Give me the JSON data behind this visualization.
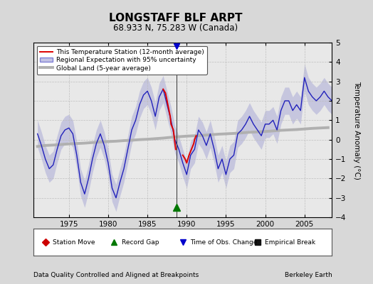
{
  "title": "LONGSTAFF BLF ARPT",
  "subtitle": "68.933 N, 75.283 W (Canada)",
  "ylabel": "Temperature Anomaly (°C)",
  "xlabel_left": "Data Quality Controlled and Aligned at Breakpoints",
  "xlabel_right": "Berkeley Earth",
  "xlim": [
    1970.5,
    2008.5
  ],
  "ylim": [
    -4,
    5
  ],
  "yticks": [
    -4,
    -3,
    -2,
    -1,
    0,
    1,
    2,
    3,
    4,
    5
  ],
  "xticks": [
    1975,
    1980,
    1985,
    1990,
    1995,
    2000,
    2005
  ],
  "background_color": "#d8d8d8",
  "plot_bg_color": "#e8e8e8",
  "legend_items": [
    {
      "label": "This Temperature Station (12-month average)",
      "color": "#cc0000",
      "lw": 1.5
    },
    {
      "label": "Regional Expectation with 95% uncertainty",
      "color": "#3333cc",
      "lw": 1.5
    },
    {
      "label": "Global Land (5-year average)",
      "color": "#aaaaaa",
      "lw": 2.5
    }
  ],
  "vertical_line_x": 1988.7,
  "record_gap_x": 1988.7,
  "record_gap_y_data": -3.5,
  "time_obs_y_data": 4.8,
  "regional_x": [
    1971.0,
    1971.5,
    1972.0,
    1972.5,
    1973.0,
    1973.5,
    1974.0,
    1974.5,
    1975.0,
    1975.5,
    1976.0,
    1976.5,
    1977.0,
    1977.5,
    1978.0,
    1978.5,
    1979.0,
    1979.5,
    1980.0,
    1980.5,
    1981.0,
    1981.5,
    1982.0,
    1982.5,
    1983.0,
    1983.5,
    1984.0,
    1984.5,
    1985.0,
    1985.5,
    1986.0,
    1986.5,
    1987.0,
    1987.5,
    1988.0,
    1988.5,
    1989.0,
    1989.5,
    1990.0,
    1990.5,
    1991.0,
    1991.5,
    1992.0,
    1992.5,
    1993.0,
    1993.5,
    1994.0,
    1994.5,
    1995.0,
    1995.5,
    1996.0,
    1996.5,
    1997.0,
    1997.5,
    1998.0,
    1998.5,
    1999.0,
    1999.5,
    2000.0,
    2000.5,
    2001.0,
    2001.5,
    2002.0,
    2002.5,
    2003.0,
    2003.5,
    2004.0,
    2004.5,
    2005.0,
    2005.5,
    2006.0,
    2006.5,
    2007.0,
    2007.5,
    2008.0,
    2008.5
  ],
  "regional_y": [
    0.3,
    -0.3,
    -1.0,
    -1.5,
    -1.3,
    -0.5,
    0.2,
    0.5,
    0.6,
    0.3,
    -0.8,
    -2.2,
    -2.8,
    -2.0,
    -1.0,
    -0.2,
    0.3,
    -0.3,
    -1.2,
    -2.5,
    -3.0,
    -2.2,
    -1.5,
    -0.5,
    0.5,
    1.0,
    1.8,
    2.3,
    2.5,
    2.0,
    1.2,
    2.2,
    2.6,
    1.8,
    1.0,
    0.0,
    -0.5,
    -1.2,
    -1.8,
    -0.8,
    -0.5,
    0.5,
    0.2,
    -0.3,
    0.3,
    -0.5,
    -1.5,
    -1.0,
    -1.8,
    -1.0,
    -0.8,
    0.3,
    0.5,
    0.8,
    1.2,
    0.8,
    0.5,
    0.2,
    0.8,
    0.8,
    1.0,
    0.5,
    1.5,
    2.0,
    2.0,
    1.5,
    1.8,
    1.5,
    3.2,
    2.5,
    2.2,
    2.0,
    2.2,
    2.5,
    2.2,
    2.0
  ],
  "regional_upper": [
    1.0,
    0.4,
    -0.3,
    -0.8,
    -0.6,
    0.2,
    0.9,
    1.2,
    1.3,
    1.0,
    -0.1,
    -1.5,
    -2.1,
    -1.3,
    -0.3,
    0.5,
    1.0,
    0.4,
    -0.5,
    -1.8,
    -2.3,
    -1.5,
    -0.8,
    0.2,
    1.2,
    1.7,
    2.5,
    3.0,
    3.2,
    2.7,
    1.9,
    2.9,
    3.3,
    2.5,
    1.7,
    0.7,
    0.2,
    -0.5,
    -1.1,
    -0.1,
    0.2,
    1.2,
    0.9,
    0.4,
    1.0,
    0.2,
    -0.8,
    -0.3,
    -1.1,
    -0.3,
    -0.1,
    1.0,
    1.2,
    1.5,
    1.9,
    1.5,
    1.2,
    0.9,
    1.5,
    1.5,
    1.7,
    1.2,
    2.2,
    2.7,
    2.7,
    2.2,
    2.5,
    2.2,
    3.9,
    3.2,
    2.9,
    2.7,
    2.9,
    3.2,
    2.9,
    2.7
  ],
  "regional_lower": [
    -0.4,
    -1.0,
    -1.7,
    -2.2,
    -2.0,
    -1.2,
    -0.5,
    -0.2,
    -0.1,
    -0.4,
    -1.5,
    -2.9,
    -3.5,
    -2.7,
    -1.7,
    -0.9,
    -0.4,
    -1.0,
    -1.9,
    -3.2,
    -3.7,
    -2.9,
    -2.2,
    -1.2,
    -0.2,
    0.3,
    1.1,
    1.6,
    1.8,
    1.3,
    0.5,
    1.5,
    1.9,
    1.1,
    0.3,
    -0.7,
    -1.2,
    -1.9,
    -2.5,
    -1.5,
    -1.2,
    -0.2,
    -0.5,
    -1.0,
    -0.4,
    -1.2,
    -2.2,
    -1.7,
    -2.5,
    -1.7,
    -1.5,
    -0.4,
    -0.2,
    0.1,
    0.5,
    0.1,
    -0.2,
    -0.5,
    0.1,
    0.1,
    0.3,
    -0.2,
    0.8,
    1.3,
    1.3,
    0.8,
    1.1,
    0.8,
    2.5,
    1.8,
    1.5,
    1.3,
    1.5,
    1.8,
    1.5,
    1.3
  ],
  "global_x": [
    1971.0,
    1972.0,
    1973.0,
    1974.0,
    1975.0,
    1976.0,
    1977.0,
    1978.0,
    1979.0,
    1980.0,
    1981.0,
    1982.0,
    1983.0,
    1984.0,
    1985.0,
    1986.0,
    1987.0,
    1988.0,
    1989.0,
    1990.0,
    1991.0,
    1992.0,
    1993.0,
    1994.0,
    1995.0,
    1996.0,
    1997.0,
    1998.0,
    1999.0,
    2000.0,
    2001.0,
    2002.0,
    2003.0,
    2004.0,
    2005.0,
    2006.0,
    2007.0,
    2008.0
  ],
  "global_y": [
    -0.35,
    -0.3,
    -0.28,
    -0.25,
    -0.22,
    -0.2,
    -0.18,
    -0.15,
    -0.12,
    -0.1,
    -0.08,
    -0.05,
    -0.03,
    0.0,
    0.02,
    0.05,
    0.08,
    0.12,
    0.15,
    0.18,
    0.2,
    0.22,
    0.25,
    0.28,
    0.3,
    0.32,
    0.35,
    0.38,
    0.4,
    0.42,
    0.45,
    0.48,
    0.5,
    0.52,
    0.55,
    0.58,
    0.6,
    0.62
  ],
  "station_seg1_x": [
    1987.0,
    1987.3,
    1987.6,
    1987.9,
    1988.0,
    1988.3,
    1988.6
  ],
  "station_seg1_y": [
    2.6,
    2.4,
    1.8,
    1.2,
    0.8,
    0.5,
    -0.5
  ],
  "station_seg2_x": [
    1989.5,
    1989.8,
    1990.0,
    1990.3,
    1990.6,
    1990.9,
    1991.0,
    1991.2
  ],
  "station_seg2_y": [
    -0.8,
    -1.0,
    -1.2,
    -0.8,
    -0.5,
    -0.2,
    0.0,
    0.2
  ]
}
